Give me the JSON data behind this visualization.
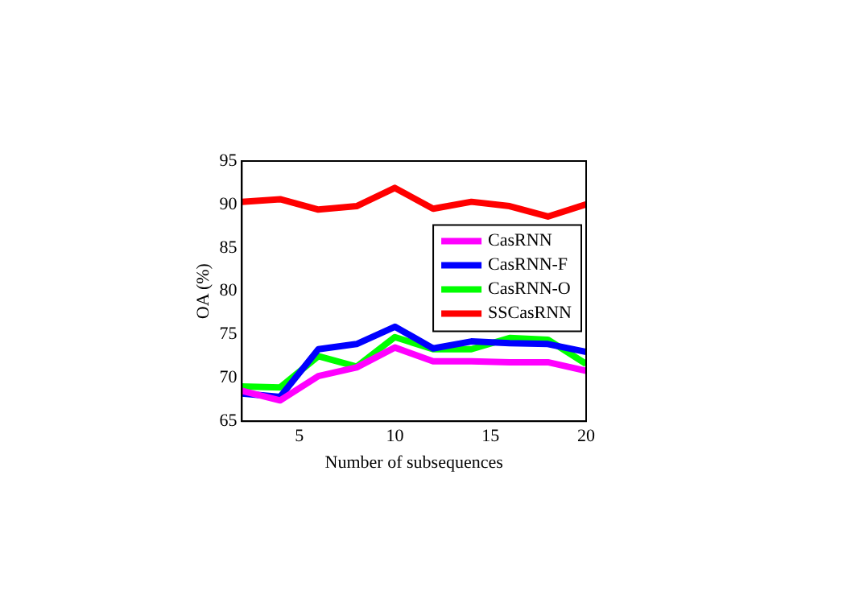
{
  "chart_data": {
    "type": "line",
    "xlabel": "Number of subsequences",
    "ylabel": "OA (%)",
    "x": [
      2,
      4,
      6,
      8,
      10,
      12,
      14,
      16,
      18,
      20
    ],
    "series": [
      {
        "name": "CasRNN",
        "color": "#ff00ff",
        "values": [
          68.5,
          67.4,
          70.2,
          71.2,
          73.5,
          71.9,
          71.9,
          71.8,
          71.8,
          70.8
        ]
      },
      {
        "name": "CasRNN-F",
        "color": "#0000ff",
        "values": [
          68.2,
          67.8,
          73.3,
          73.9,
          75.9,
          73.4,
          74.2,
          74.0,
          73.9,
          73.0
        ]
      },
      {
        "name": "CasRNN-O",
        "color": "#00ff00",
        "values": [
          69.0,
          68.9,
          72.5,
          71.3,
          74.7,
          73.3,
          73.3,
          74.6,
          74.4,
          71.6
        ]
      },
      {
        "name": "SSCasRNN",
        "color": "#ff0000",
        "values": [
          90.3,
          90.6,
          89.4,
          89.8,
          91.9,
          89.5,
          90.3,
          89.8,
          88.6,
          90.0
        ]
      }
    ],
    "xlim": [
      2,
      20
    ],
    "xticks": [
      5,
      10,
      15,
      20
    ],
    "ylim": [
      65,
      95
    ],
    "yticks": [
      65,
      70,
      75,
      80,
      85,
      90,
      95
    ],
    "grid": false,
    "legend": "right",
    "marker": "none",
    "line_style": "solid"
  }
}
